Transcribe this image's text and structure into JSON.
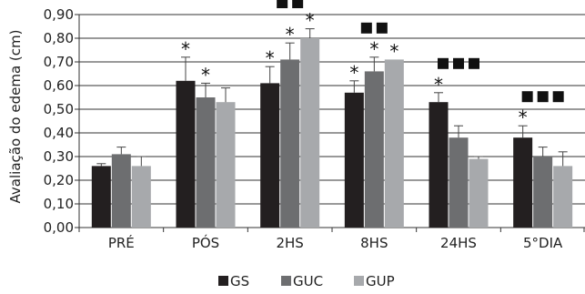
{
  "chart_data": {
    "type": "bar",
    "ylabel": "Avaliação do edema (cm)",
    "ylim": [
      0,
      0.9
    ],
    "yticks": [
      "0,00",
      "0,10",
      "0,20",
      "0,30",
      "0,40",
      "0,50",
      "0,60",
      "0,70",
      "0,80",
      "0,90"
    ],
    "categories": [
      "PRÉ",
      "PÓS",
      "2HS",
      "8HS",
      "24HS",
      "5°DIA"
    ],
    "series": [
      {
        "name": "GS",
        "color": "#231f20",
        "values": [
          0.26,
          0.62,
          0.61,
          0.57,
          0.53,
          0.38
        ],
        "errors": [
          0.01,
          0.1,
          0.07,
          0.05,
          0.04,
          0.05
        ]
      },
      {
        "name": "GUC",
        "color": "#6d6e70",
        "values": [
          0.31,
          0.55,
          0.71,
          0.66,
          0.38,
          0.3
        ],
        "errors": [
          0.03,
          0.06,
          0.07,
          0.06,
          0.05,
          0.04
        ]
      },
      {
        "name": "GUP",
        "color": "#a7a9ac",
        "values": [
          0.26,
          0.53,
          0.8,
          0.71,
          0.29,
          0.26
        ],
        "errors": [
          0.04,
          0.06,
          0.04,
          0.0,
          0.01,
          0.06
        ]
      }
    ],
    "annotations": {
      "stars": [
        {
          "category": "PÓS",
          "series": [
            "GS",
            "GUC"
          ]
        },
        {
          "category": "2HS",
          "series": [
            "GS",
            "GUC",
            "GUP"
          ]
        },
        {
          "category": "8HS",
          "series": [
            "GS",
            "GUC",
            "GUP"
          ]
        },
        {
          "category": "24HS",
          "series": [
            "GS"
          ]
        },
        {
          "category": "5°DIA",
          "series": [
            "GS"
          ]
        }
      ],
      "squares": [
        {
          "category": "2HS",
          "count": 2
        },
        {
          "category": "8HS",
          "count": 2
        },
        {
          "category": "24HS",
          "count": 3
        },
        {
          "category": "5°DIA",
          "count": 3
        }
      ]
    },
    "star_symbol": "*",
    "grid": true,
    "legend_position": "bottom"
  }
}
